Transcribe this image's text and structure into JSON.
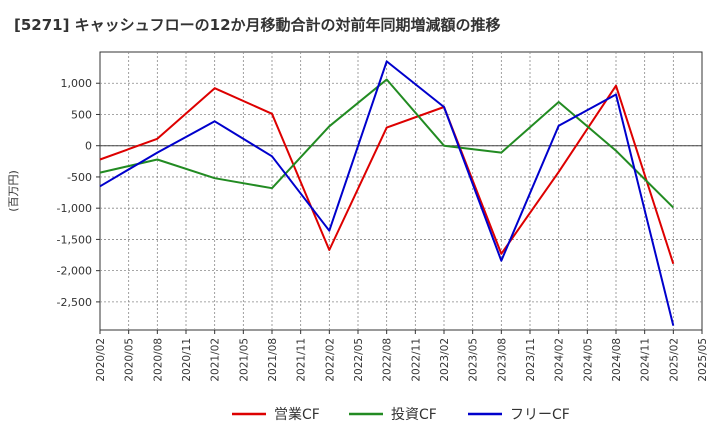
{
  "chart_data": {
    "type": "line",
    "title": "[5271]  キャッシュフローの12か月移動合計の対前年同期増減額の推移",
    "ylabel": "(百万円)",
    "xlabel": "",
    "ylim": [
      -2950,
      1500
    ],
    "yticks": [
      1000,
      500,
      0,
      -500,
      -1000,
      -1500,
      -2000,
      -2500
    ],
    "ytick_labels": [
      "1,000",
      "500",
      "0",
      "-500",
      "-1,000",
      "-1,500",
      "-2,000",
      "-2,500"
    ],
    "categories": [
      "2020/02",
      "2020/05",
      "2020/08",
      "2020/11",
      "2021/02",
      "2021/05",
      "2021/08",
      "2021/11",
      "2022/02",
      "2022/05",
      "2022/08",
      "2022/11",
      "2023/02",
      "2023/05",
      "2023/08",
      "2023/11",
      "2024/02",
      "2024/05",
      "2024/08",
      "2024/11",
      "2025/02",
      "2025/05"
    ],
    "grid": true,
    "legend_position": "bottom",
    "series": [
      {
        "name": "営業CF",
        "color": "#dd0000",
        "points": [
          [
            "2020/02",
            -220
          ],
          [
            "2020/08",
            110
          ],
          [
            "2021/02",
            920
          ],
          [
            "2021/08",
            510
          ],
          [
            "2022/02",
            -1670
          ],
          [
            "2022/08",
            290
          ],
          [
            "2023/02",
            620
          ],
          [
            "2023/08",
            -1730
          ],
          [
            "2024/02",
            -420
          ],
          [
            "2024/08",
            960
          ],
          [
            "2025/02",
            -1890
          ]
        ]
      },
      {
        "name": "投資CF",
        "color": "#228b22",
        "points": [
          [
            "2020/02",
            -430
          ],
          [
            "2020/08",
            -220
          ],
          [
            "2021/02",
            -520
          ],
          [
            "2021/08",
            -680
          ],
          [
            "2022/02",
            310
          ],
          [
            "2022/08",
            1060
          ],
          [
            "2023/02",
            0
          ],
          [
            "2023/08",
            -110
          ],
          [
            "2024/02",
            700
          ],
          [
            "2024/08",
            -80
          ],
          [
            "2025/02",
            -990
          ]
        ]
      },
      {
        "name": "フリーCF",
        "color": "#0000cc",
        "points": [
          [
            "2020/02",
            -650
          ],
          [
            "2020/08",
            -110
          ],
          [
            "2021/02",
            390
          ],
          [
            "2021/08",
            -170
          ],
          [
            "2022/02",
            -1360
          ],
          [
            "2022/08",
            1350
          ],
          [
            "2023/02",
            620
          ],
          [
            "2023/08",
            -1840
          ],
          [
            "2024/02",
            320
          ],
          [
            "2024/08",
            820
          ],
          [
            "2025/02",
            -2880
          ]
        ]
      }
    ]
  }
}
